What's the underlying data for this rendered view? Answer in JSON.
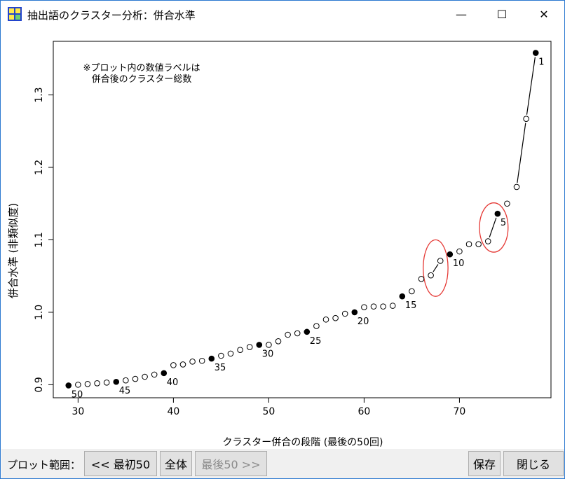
{
  "window": {
    "title": "抽出語のクラスター分析：併合水準",
    "min_glyph": "—",
    "max_glyph": "☐",
    "close_glyph": "✕"
  },
  "toolbar": {
    "range_label": "プロット範囲：",
    "first50_label": "<< 最初50",
    "all_label": "全体",
    "last50_label": "最後50 >>",
    "save_label": "保存",
    "close_label": "閉じる"
  },
  "chart_data": {
    "type": "scatter",
    "xlabel": "クラスター併合の段階 (最後の50回)",
    "ylabel": "併合水準 (非類似度)",
    "xlim": [
      27.4,
      79.6
    ],
    "ylim": [
      0.882,
      1.374
    ],
    "xticks": [
      30,
      40,
      50,
      60,
      70
    ],
    "yticks": [
      0.9,
      1.0,
      1.1,
      1.2,
      1.3
    ],
    "note": [
      "※プロット内の数値ラベルは",
      "併合後のクラスター総数"
    ],
    "points": [
      {
        "x": 29,
        "y": 0.899,
        "filled": true,
        "label": "50"
      },
      {
        "x": 30,
        "y": 0.9
      },
      {
        "x": 31,
        "y": 0.901
      },
      {
        "x": 32,
        "y": 0.902
      },
      {
        "x": 33,
        "y": 0.903
      },
      {
        "x": 34,
        "y": 0.904,
        "filled": true,
        "label": "45"
      },
      {
        "x": 35,
        "y": 0.906
      },
      {
        "x": 36,
        "y": 0.908
      },
      {
        "x": 37,
        "y": 0.911
      },
      {
        "x": 38,
        "y": 0.914
      },
      {
        "x": 39,
        "y": 0.916,
        "filled": true,
        "label": "40"
      },
      {
        "x": 40,
        "y": 0.927
      },
      {
        "x": 41,
        "y": 0.928
      },
      {
        "x": 42,
        "y": 0.932
      },
      {
        "x": 43,
        "y": 0.933
      },
      {
        "x": 44,
        "y": 0.936,
        "filled": true,
        "label": "35"
      },
      {
        "x": 45,
        "y": 0.94
      },
      {
        "x": 46,
        "y": 0.943
      },
      {
        "x": 47,
        "y": 0.948
      },
      {
        "x": 48,
        "y": 0.952
      },
      {
        "x": 49,
        "y": 0.955,
        "filled": true,
        "label": "30"
      },
      {
        "x": 50,
        "y": 0.955
      },
      {
        "x": 51,
        "y": 0.96
      },
      {
        "x": 52,
        "y": 0.969
      },
      {
        "x": 53,
        "y": 0.971
      },
      {
        "x": 54,
        "y": 0.973,
        "filled": true,
        "label": "25"
      },
      {
        "x": 55,
        "y": 0.981
      },
      {
        "x": 56,
        "y": 0.99
      },
      {
        "x": 57,
        "y": 0.992
      },
      {
        "x": 58,
        "y": 0.998
      },
      {
        "x": 59,
        "y": 1.0,
        "filled": true,
        "label": "20"
      },
      {
        "x": 60,
        "y": 1.007
      },
      {
        "x": 61,
        "y": 1.008
      },
      {
        "x": 62,
        "y": 1.008
      },
      {
        "x": 63,
        "y": 1.009
      },
      {
        "x": 64,
        "y": 1.022,
        "filled": true,
        "label": "15"
      },
      {
        "x": 65,
        "y": 1.029
      },
      {
        "x": 66,
        "y": 1.046
      },
      {
        "x": 67,
        "y": 1.051
      },
      {
        "x": 68,
        "y": 1.071
      },
      {
        "x": 69,
        "y": 1.08,
        "filled": true,
        "label": "10"
      },
      {
        "x": 70,
        "y": 1.084
      },
      {
        "x": 71,
        "y": 1.094
      },
      {
        "x": 72,
        "y": 1.094
      },
      {
        "x": 73,
        "y": 1.098
      },
      {
        "x": 74,
        "y": 1.136,
        "filled": true,
        "label": "5"
      },
      {
        "x": 75,
        "y": 1.15
      },
      {
        "x": 76,
        "y": 1.173
      },
      {
        "x": 77,
        "y": 1.267
      },
      {
        "x": 78,
        "y": 1.358,
        "filled": true,
        "label": "1"
      }
    ],
    "segments": [
      [
        67,
        68
      ],
      [
        73,
        74
      ],
      [
        76,
        77
      ],
      [
        77,
        78
      ]
    ],
    "highlight_color": "#e53935",
    "highlights": [
      {
        "cx": 67.5,
        "cy": 1.061,
        "rx": 1.3,
        "ry": 0.039
      },
      {
        "cx": 73.6,
        "cy": 1.117,
        "rx": 1.5,
        "ry": 0.034
      }
    ]
  }
}
